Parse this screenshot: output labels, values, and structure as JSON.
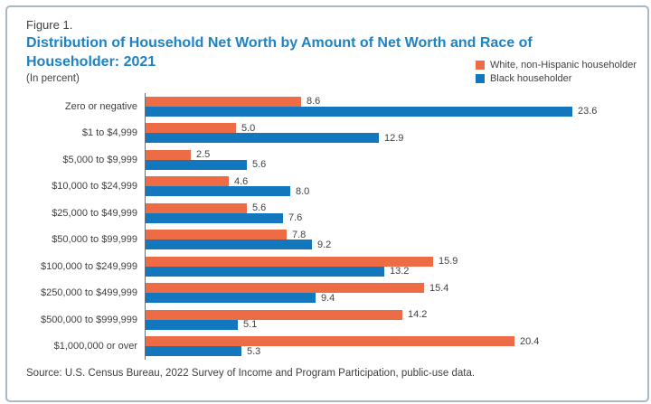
{
  "figure_label": "Figure 1.",
  "title_lines": [
    "Distribution of Household Net Worth by Amount of Net Worth and Race of",
    "Householder: 2021"
  ],
  "subtitle": "(In percent)",
  "source": "Source: U.S. Census Bureau, 2022 Survey of Income and Program Participation, public-use data.",
  "legend": [
    {
      "label": "White, non-Hispanic householder",
      "color": "#ed6b45"
    },
    {
      "label": "Black householder",
      "color": "#1377bd"
    }
  ],
  "colors": {
    "title_blue": "#1e82c5",
    "text_dark": "#414042",
    "axis_gray": "#6d6e71",
    "border_blue_gray": "#a7b9c6",
    "bar_orange": "#ed6b45",
    "bar_blue": "#1377bd"
  },
  "chart_data": {
    "type": "bar",
    "orientation": "horizontal",
    "title": "Distribution of Household Net Worth by Amount of Net Worth and Race of Householder: 2021",
    "subtitle": "(In percent)",
    "xlabel": "",
    "ylabel": "",
    "xlim": [
      0,
      25
    ],
    "grid": false,
    "value_labels": true,
    "legend_position": "top-right",
    "categories": [
      "Zero or negative",
      "$1 to $4,999",
      "$5,000 to $9,999",
      "$10,000 to $24,999",
      "$25,000 to $49,999",
      "$50,000 to $99,999",
      "$100,000 to $249,999",
      "$250,000 to $499,999",
      "$500,000 to $999,999",
      "$1,000,000 or over"
    ],
    "series": [
      {
        "name": "White, non-Hispanic householder",
        "color": "#ed6b45",
        "values": [
          8.6,
          5.0,
          2.5,
          4.6,
          5.6,
          7.8,
          15.9,
          15.4,
          14.2,
          20.4
        ]
      },
      {
        "name": "Black householder",
        "color": "#1377bd",
        "values": [
          23.6,
          12.9,
          5.6,
          8.0,
          7.6,
          9.2,
          13.2,
          9.4,
          5.1,
          5.3
        ]
      }
    ]
  }
}
